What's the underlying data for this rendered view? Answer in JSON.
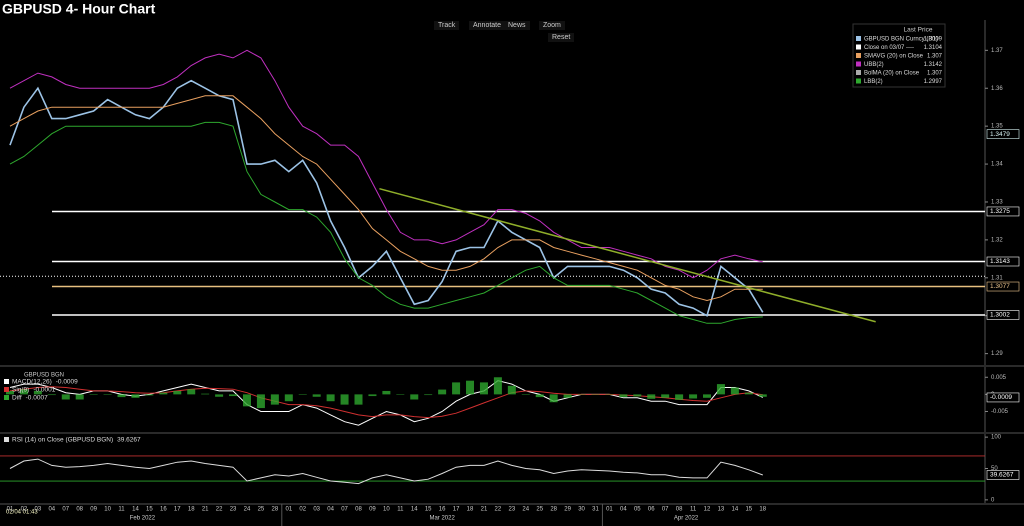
{
  "toolbar": {
    "buttons": [
      "Track",
      "Annotate",
      "News",
      "Zoom"
    ],
    "reset": "Reset"
  },
  "cursor_label": "02/04 01:43",
  "chart_data": [
    {
      "type": "line",
      "title": "GBPUSD 4- Hour Chart",
      "legend_title": "Last Price",
      "legend": "top-right",
      "categories": [
        "01",
        "02",
        "03",
        "04",
        "07",
        "08",
        "09",
        "10",
        "11",
        "14",
        "15",
        "16",
        "17",
        "18",
        "21",
        "22",
        "23",
        "24",
        "25",
        "28",
        "01",
        "02",
        "03",
        "04",
        "07",
        "08",
        "09",
        "10",
        "11",
        "14",
        "15",
        "16",
        "17",
        "18",
        "21",
        "22",
        "23",
        "24",
        "25",
        "28",
        "29",
        "30",
        "31",
        "01",
        "04",
        "05",
        "06",
        "07",
        "08",
        "11",
        "12",
        "13",
        "14",
        "15",
        "18"
      ],
      "month_labels": [
        "Feb 2022",
        "Mar 2022",
        "Apr 2022"
      ],
      "ylim": [
        1.287,
        1.378
      ],
      "yticks": [
        1.29,
        1.3,
        1.31,
        1.32,
        1.33,
        1.34,
        1.35,
        1.36,
        1.37
      ],
      "series": [
        {
          "name": "GBPUSD BGN Curncy  (R1)",
          "color": "#9cc3e6",
          "last": 1.3009,
          "values": [
            1.345,
            1.355,
            1.36,
            1.352,
            1.352,
            1.353,
            1.354,
            1.357,
            1.355,
            1.353,
            1.352,
            1.355,
            1.36,
            1.362,
            1.36,
            1.358,
            1.357,
            1.34,
            1.34,
            1.341,
            1.338,
            1.341,
            1.335,
            1.325,
            1.318,
            1.31,
            1.313,
            1.317,
            1.31,
            1.303,
            1.304,
            1.309,
            1.317,
            1.318,
            1.318,
            1.325,
            1.322,
            1.32,
            1.318,
            1.31,
            1.313,
            1.313,
            1.313,
            1.313,
            1.312,
            1.31,
            1.307,
            1.306,
            1.303,
            1.302,
            1.3,
            1.313,
            1.31,
            1.307,
            1.3009
          ]
        },
        {
          "name": "Close on 03/07  ----",
          "color": "#ffffff",
          "last": 1.3104,
          "dashed": true
        },
        {
          "name": "SMAVG (20)  on Close",
          "color": "#e8a060",
          "last": 1.307,
          "values": [
            1.35,
            1.352,
            1.354,
            1.355,
            1.355,
            1.355,
            1.355,
            1.355,
            1.355,
            1.355,
            1.355,
            1.355,
            1.356,
            1.357,
            1.358,
            1.358,
            1.358,
            1.355,
            1.352,
            1.348,
            1.345,
            1.342,
            1.34,
            1.336,
            1.332,
            1.328,
            1.323,
            1.32,
            1.317,
            1.315,
            1.313,
            1.312,
            1.312,
            1.313,
            1.315,
            1.318,
            1.32,
            1.32,
            1.32,
            1.318,
            1.317,
            1.316,
            1.315,
            1.314,
            1.313,
            1.312,
            1.31,
            1.308,
            1.307,
            1.305,
            1.304,
            1.305,
            1.307,
            1.307,
            1.307
          ]
        },
        {
          "name": "UBB(2)",
          "color": "#c030c0",
          "last": 1.3142,
          "values": [
            1.36,
            1.362,
            1.364,
            1.363,
            1.361,
            1.36,
            1.36,
            1.36,
            1.36,
            1.36,
            1.36,
            1.361,
            1.363,
            1.366,
            1.368,
            1.369,
            1.368,
            1.37,
            1.368,
            1.362,
            1.355,
            1.35,
            1.348,
            1.345,
            1.345,
            1.342,
            1.335,
            1.328,
            1.322,
            1.32,
            1.32,
            1.319,
            1.32,
            1.322,
            1.324,
            1.328,
            1.328,
            1.327,
            1.325,
            1.322,
            1.32,
            1.318,
            1.318,
            1.318,
            1.317,
            1.316,
            1.315,
            1.313,
            1.312,
            1.31,
            1.312,
            1.315,
            1.316,
            1.315,
            1.3142
          ]
        },
        {
          "name": "BolMA (20)  on Close",
          "color": "#aaaaaa",
          "last": 1.307
        },
        {
          "name": "LBB(2)",
          "color": "#2ea82e",
          "last": 1.2997,
          "values": [
            1.34,
            1.342,
            1.345,
            1.348,
            1.35,
            1.35,
            1.35,
            1.35,
            1.35,
            1.35,
            1.35,
            1.35,
            1.35,
            1.35,
            1.351,
            1.351,
            1.35,
            1.338,
            1.332,
            1.33,
            1.328,
            1.328,
            1.326,
            1.322,
            1.315,
            1.31,
            1.308,
            1.305,
            1.303,
            1.302,
            1.302,
            1.303,
            1.304,
            1.305,
            1.306,
            1.308,
            1.31,
            1.312,
            1.313,
            1.31,
            1.308,
            1.308,
            1.308,
            1.308,
            1.307,
            1.306,
            1.304,
            1.302,
            1.3,
            1.299,
            1.298,
            1.298,
            1.299,
            1.2995,
            1.2997
          ]
        }
      ],
      "hlines": [
        {
          "value": 1.3275,
          "color": "#ffffff"
        },
        {
          "value": 1.3143,
          "color": "#ffffff"
        },
        {
          "value": 1.3077,
          "color": "#e8c080"
        },
        {
          "value": 1.3002,
          "color": "#ffffff"
        }
      ],
      "price_tags": [
        {
          "value": 1.3479,
          "color": "#d8f4f4"
        },
        {
          "value": 1.3275,
          "color": "#ffffff"
        },
        {
          "value": 1.3143,
          "color": "#ffffff"
        },
        {
          "value": 1.3077,
          "color": "#f0c890"
        },
        {
          "value": 1.3002,
          "color": "#ffffff"
        }
      ],
      "trendline": {
        "x": [
          26.5,
          62.1
        ],
        "y": [
          1.3335,
          1.2984
        ],
        "color": "#8fae2a"
      }
    },
    {
      "type": "line",
      "title": "GBPUSD BGN",
      "legend": "top-left",
      "ylim": [
        -0.011,
        0.008
      ],
      "yticks": [
        0.005,
        0,
        -0.005
      ],
      "series": [
        {
          "name": "MACD(12,26)",
          "color": "#ffffff",
          "last": -0.0009,
          "values": [
            0.002,
            0.003,
            0.003,
            0.002,
            0.0005,
            0,
            0.001,
            0.001,
            0,
            -0.0005,
            0,
            0.001,
            0.002,
            0.003,
            0.002,
            0.001,
            0.001,
            -0.003,
            -0.005,
            -0.005,
            -0.005,
            -0.003,
            -0.004,
            -0.006,
            -0.008,
            -0.009,
            -0.007,
            -0.005,
            -0.006,
            -0.008,
            -0.007,
            -0.005,
            -0.002,
            0,
            0.001,
            0.004,
            0.003,
            0.001,
            0,
            -0.002,
            -0.001,
            0,
            0,
            0,
            -0.001,
            -0.001,
            -0.002,
            -0.002,
            -0.003,
            -0.003,
            -0.003,
            0.002,
            0.002,
            0.001,
            -0.0009
          ]
        },
        {
          "name": "Sig(9)",
          "color": "#d03030",
          "last": -0.0001,
          "values": [
            0.001,
            0.0015,
            0.002,
            0.0022,
            0.002,
            0.0015,
            0.001,
            0.001,
            0.0008,
            0.0005,
            0.0003,
            0.0005,
            0.001,
            0.0015,
            0.0018,
            0.0017,
            0.0015,
            0.0005,
            -0.001,
            -0.002,
            -0.003,
            -0.003,
            -0.0033,
            -0.004,
            -0.005,
            -0.006,
            -0.0065,
            -0.006,
            -0.006,
            -0.0065,
            -0.0068,
            -0.0064,
            -0.0055,
            -0.004,
            -0.0025,
            -0.001,
            0.0005,
            0.001,
            0.0008,
            0.0003,
            0,
            0,
            0,
            0,
            -0.0002,
            -0.0004,
            -0.0007,
            -0.001,
            -0.0014,
            -0.0018,
            -0.002,
            -0.001,
            0,
            0.0005,
            -0.0001
          ]
        },
        {
          "name": "Diff",
          "color": "#2ea82e",
          "last": -0.0007,
          "style": "bar",
          "values": [
            0.001,
            0.0015,
            0.001,
            -0.0002,
            -0.0015,
            -0.0015,
            0,
            0,
            -0.0008,
            -0.001,
            -0.0003,
            0.0005,
            0.001,
            0.0015,
            0.0002,
            -0.0007,
            -0.0005,
            -0.0035,
            -0.004,
            -0.003,
            -0.002,
            0,
            -0.0007,
            -0.002,
            -0.003,
            -0.003,
            -0.0005,
            0.001,
            0,
            -0.0015,
            -0.0002,
            0.0014,
            0.0035,
            0.004,
            0.0035,
            0.005,
            0.0025,
            0,
            -0.0008,
            -0.0023,
            -0.001,
            0,
            0,
            0,
            -0.0008,
            -0.0006,
            -0.0013,
            -0.001,
            -0.0016,
            -0.0012,
            -0.001,
            0.003,
            0.002,
            0.0005,
            -0.0007
          ]
        }
      ],
      "price_tags": [
        {
          "value": -0.0009,
          "color": "#ffffff"
        }
      ]
    },
    {
      "type": "line",
      "legend": "top-left",
      "ylim": [
        -5,
        105
      ],
      "yticks": [
        0,
        50,
        100
      ],
      "hlines": [
        {
          "value": 70,
          "color": "#c03030"
        },
        {
          "value": 30,
          "color": "#2ea82e"
        }
      ],
      "series": [
        {
          "name": "RSI (14)  on Close (GBPUSD BGN)",
          "color": "#dddddd",
          "last": 39.6267,
          "values": [
            50,
            62,
            65,
            55,
            52,
            53,
            55,
            58,
            55,
            52,
            50,
            55,
            60,
            62,
            58,
            55,
            52,
            30,
            35,
            40,
            38,
            42,
            36,
            30,
            28,
            26,
            35,
            40,
            35,
            30,
            33,
            42,
            52,
            55,
            55,
            62,
            55,
            50,
            48,
            42,
            46,
            48,
            47,
            46,
            44,
            43,
            40,
            40,
            36,
            35,
            35,
            60,
            55,
            48,
            39.6267
          ]
        }
      ],
      "price_tags": [
        {
          "value": 39.6267,
          "color": "#ffffff"
        }
      ]
    }
  ]
}
